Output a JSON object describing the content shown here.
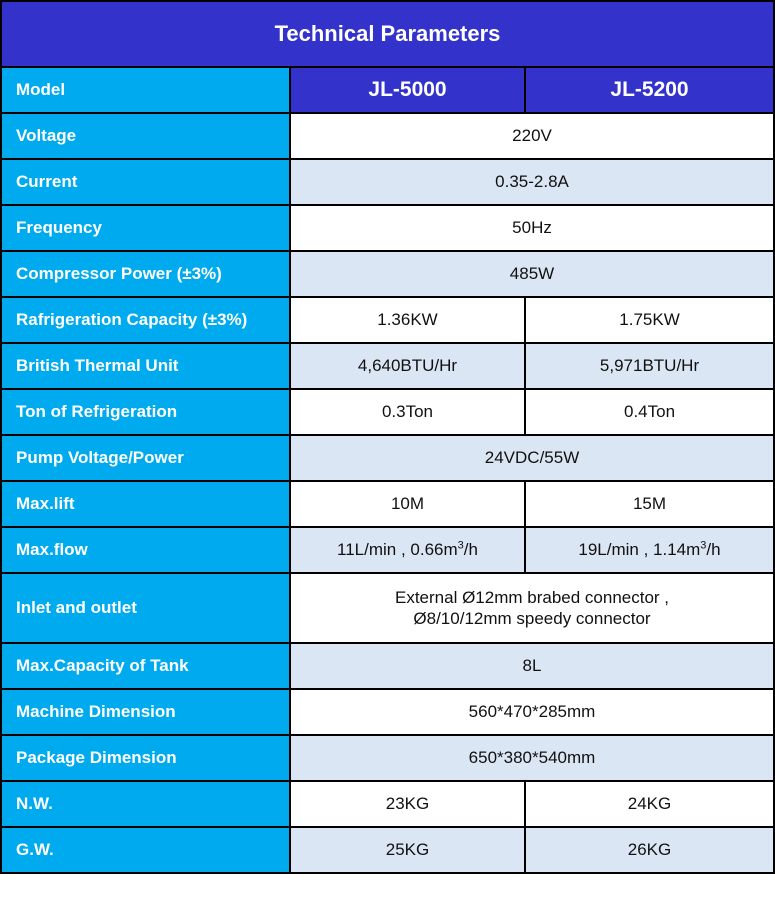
{
  "title": "Technical Parameters",
  "header": {
    "label": "Model",
    "models": [
      "JL-5000",
      "JL-5200"
    ]
  },
  "rows": {
    "voltage": {
      "label": "Voltage",
      "value": "220V"
    },
    "current": {
      "label": "Current",
      "value": "0.35-2.8A"
    },
    "frequency": {
      "label": "Frequency",
      "value": "50Hz"
    },
    "compressor_power": {
      "label": "Compressor Power (±3%)",
      "value": "485W"
    },
    "refrigeration_capacity": {
      "label": "Rafrigeration Capacity (±3%)",
      "values": [
        "1.36KW",
        "1.75KW"
      ]
    },
    "btu": {
      "label": "British Thermal Unit",
      "values": [
        "4,640BTU/Hr",
        "5,971BTU/Hr"
      ]
    },
    "ton": {
      "label": "Ton of Refrigeration",
      "values": [
        "0.3Ton",
        "0.4Ton"
      ]
    },
    "pump": {
      "label": "Pump Voltage/Power",
      "value": "24VDC/55W"
    },
    "max_lift": {
      "label": "Max.lift",
      "values": [
        "10M",
        "15M"
      ]
    },
    "max_flow": {
      "label": "Max.flow",
      "values": [
        {
          "main": "11L/min , 0.66m",
          "sup": "3",
          "unit": "/h"
        },
        {
          "main": "19L/min , 1.14m",
          "sup": "3",
          "unit": "/h"
        }
      ]
    },
    "inlet_outlet": {
      "label": "Inlet and outlet",
      "lines": [
        "External Ø12mm brabed connector ,",
        "Ø8/10/12mm speedy connector"
      ]
    },
    "tank": {
      "label": "Max.Capacity of Tank",
      "value": "8L"
    },
    "machine_dimension": {
      "label": "Machine Dimension",
      "value": "560*470*285mm"
    },
    "package_dimension": {
      "label": "Package Dimension",
      "value": "650*380*540mm"
    },
    "nw": {
      "label": "N.W.",
      "values": [
        "23KG",
        "24KG"
      ]
    },
    "gw": {
      "label": "G.W.",
      "values": [
        "25KG",
        "26KG"
      ]
    }
  }
}
